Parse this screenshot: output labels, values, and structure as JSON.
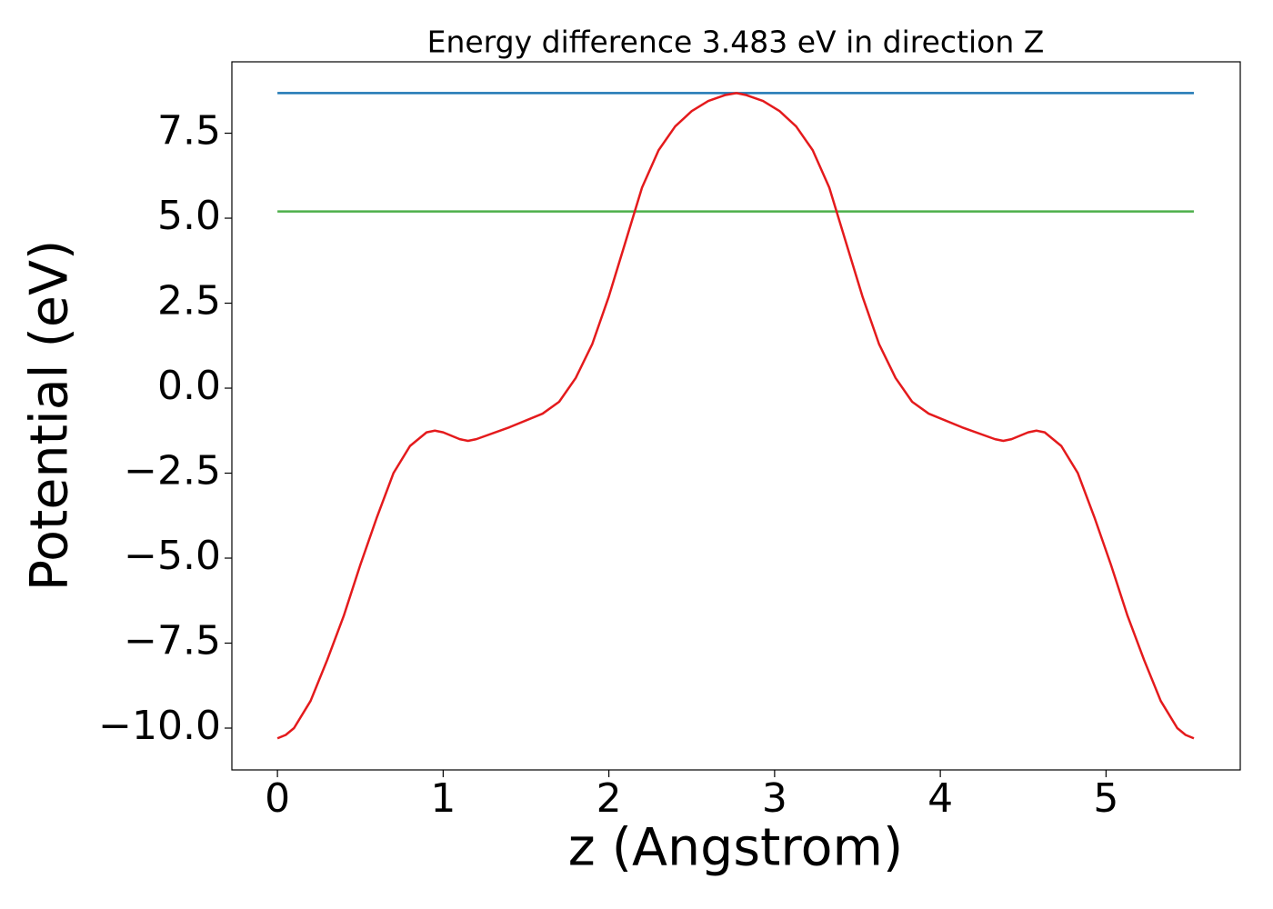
{
  "chart_data": {
    "type": "line",
    "title": "Energy difference 3.483 eV in direction Z",
    "xlabel": "z (Angstrom)",
    "ylabel": "Potential (eV)",
    "xlim": [
      -0.275,
      5.81
    ],
    "ylim": [
      -11.23,
      9.6
    ],
    "xticks": [
      0,
      1,
      2,
      3,
      4,
      5
    ],
    "yticks": [
      {
        "value": -10,
        "label": "−10.0"
      },
      {
        "value": -7.5,
        "label": "−7.5"
      },
      {
        "value": -5,
        "label": "−5.0"
      },
      {
        "value": -2.5,
        "label": "−2.5"
      },
      {
        "value": 0,
        "label": "0.0"
      },
      {
        "value": 2.5,
        "label": "2.5"
      },
      {
        "value": 5,
        "label": "5.0"
      },
      7.5
    ],
    "grid": false,
    "series": [
      {
        "color": "#1f77b4",
        "x": [
          0,
          5.53
        ],
        "values": [
          8.68,
          8.68
        ]
      },
      {
        "color": "#4daf4a",
        "x": [
          0,
          5.53
        ],
        "values": [
          5.197,
          5.197
        ]
      },
      {
        "color": "#e41a1c",
        "x": [
          0,
          0.05,
          0.1,
          0.2,
          0.3,
          0.4,
          0.5,
          0.6,
          0.7,
          0.8,
          0.9,
          0.95,
          1.0,
          1.1,
          1.15,
          1.2,
          1.4,
          1.6,
          1.7,
          1.8,
          1.9,
          2.0,
          2.1,
          2.2,
          2.3,
          2.4,
          2.5,
          2.6,
          2.7,
          2.77,
          2.83,
          2.93,
          3.03,
          3.13,
          3.23,
          3.33,
          3.43,
          3.53,
          3.63,
          3.73,
          3.83,
          3.93,
          4.13,
          4.33,
          4.38,
          4.43,
          4.53,
          4.58,
          4.63,
          4.73,
          4.83,
          4.93,
          5.03,
          5.13,
          5.23,
          5.33,
          5.43,
          5.48,
          5.53
        ],
        "values": [
          -10.3,
          -10.2,
          -10.0,
          -9.2,
          -8.0,
          -6.7,
          -5.2,
          -3.8,
          -2.5,
          -1.7,
          -1.3,
          -1.25,
          -1.3,
          -1.5,
          -1.55,
          -1.5,
          -1.15,
          -0.75,
          -0.4,
          0.3,
          1.3,
          2.7,
          4.3,
          5.9,
          7.0,
          7.7,
          8.15,
          8.45,
          8.62,
          8.68,
          8.62,
          8.45,
          8.15,
          7.7,
          7.0,
          5.9,
          4.3,
          2.7,
          1.3,
          0.3,
          -0.4,
          -0.75,
          -1.15,
          -1.5,
          -1.55,
          -1.5,
          -1.3,
          -1.25,
          -1.3,
          -1.7,
          -2.5,
          -3.8,
          -5.2,
          -6.7,
          -8.0,
          -9.2,
          -10.0,
          -10.2,
          -10.3
        ]
      }
    ]
  }
}
